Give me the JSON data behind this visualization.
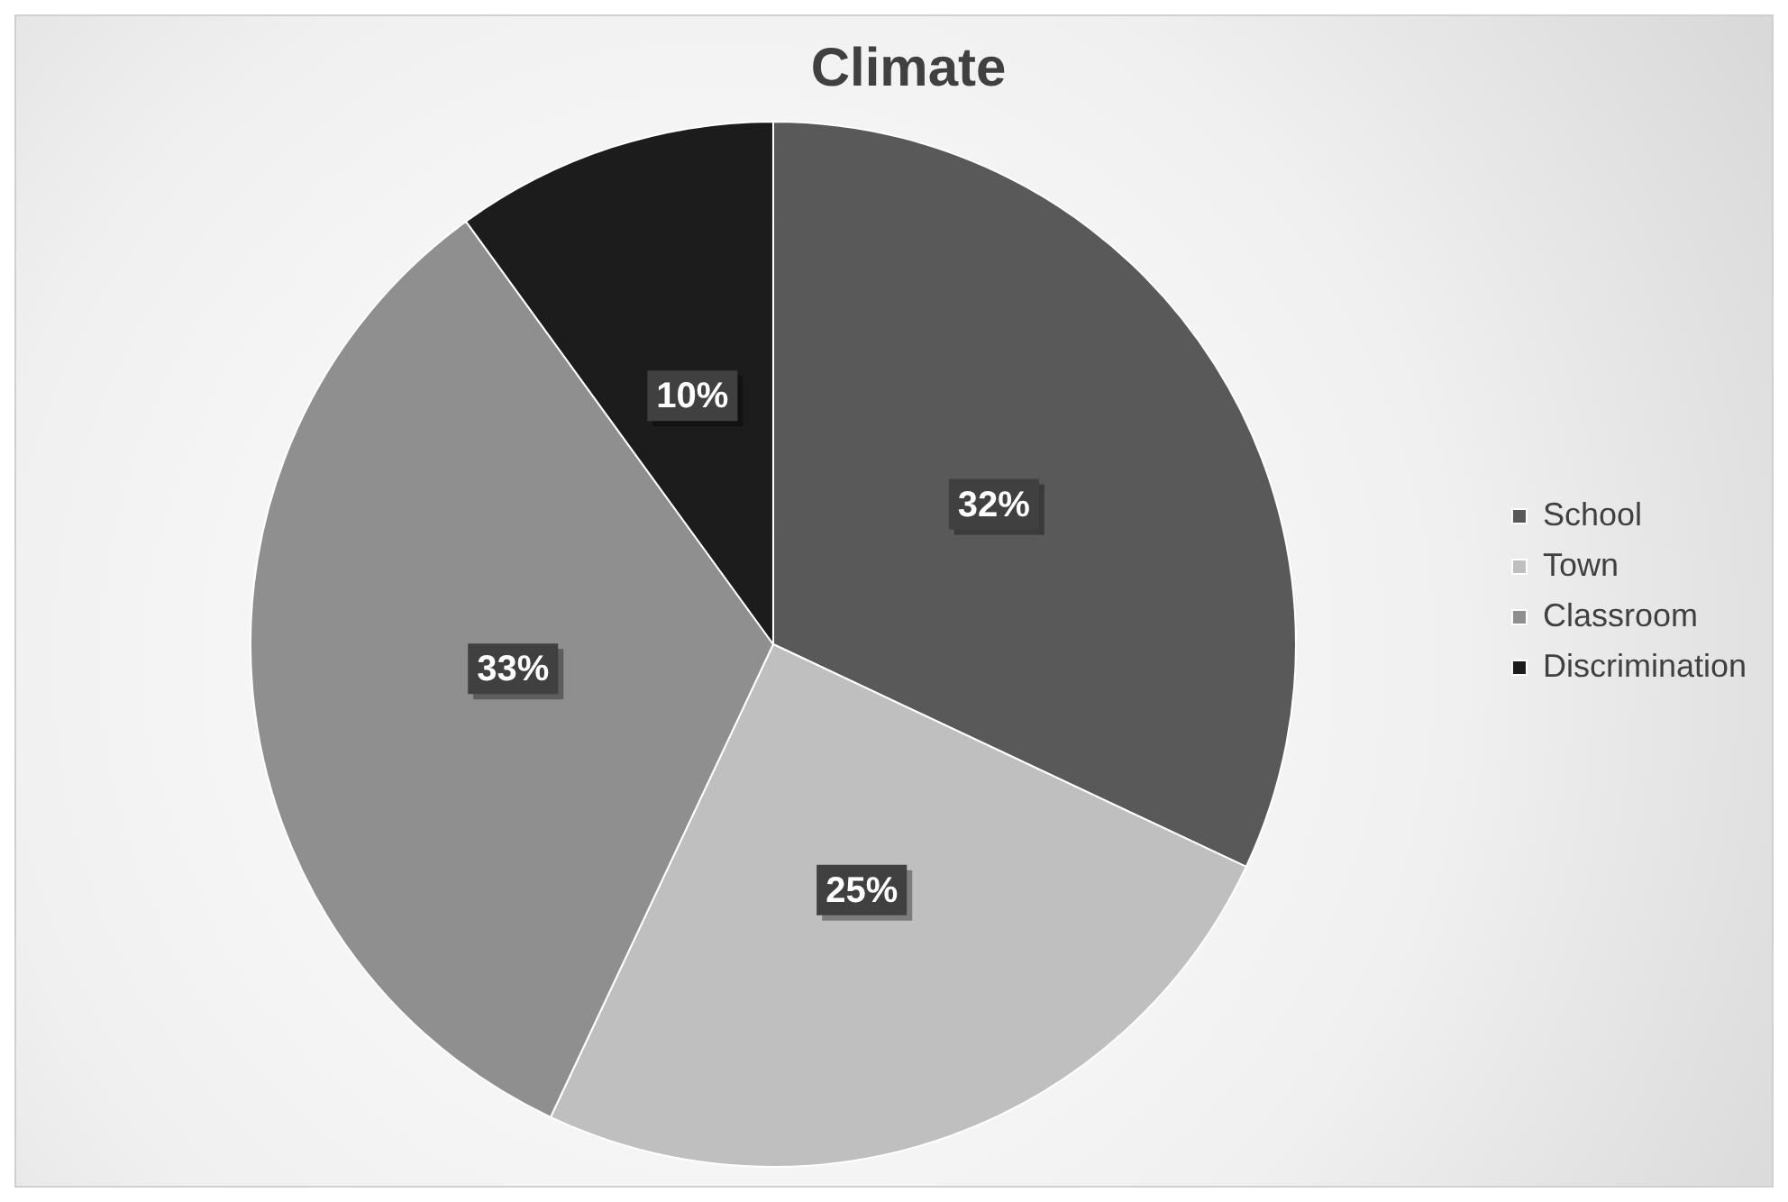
{
  "chart_data": {
    "type": "pie",
    "title": "Climate",
    "categories": [
      "School",
      "Town",
      "Classroom",
      "Discrimination"
    ],
    "values": [
      32,
      25,
      33,
      10
    ],
    "value_labels": [
      "32%",
      "25%",
      "33%",
      "10%"
    ],
    "colors": [
      "#595959",
      "#bfbfbf",
      "#8f8f8f",
      "#1c1c1c"
    ],
    "legend": "right"
  }
}
